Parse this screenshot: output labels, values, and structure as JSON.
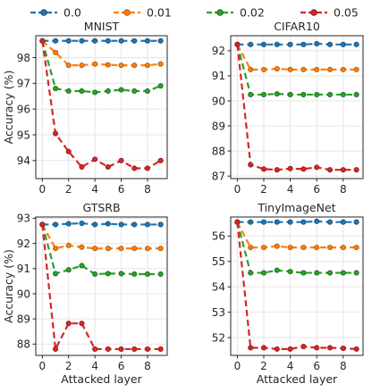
{
  "legend": {
    "placement": "top-center",
    "entries": [
      "0.0",
      "0.01",
      "0.02",
      "0.05"
    ],
    "colors": [
      "#1f77b4",
      "#ff7f0e",
      "#2ca02c",
      "#d62728"
    ]
  },
  "chart_data": [
    {
      "type": "line",
      "title": "MNIST",
      "xlabel": "",
      "ylabel": "Accuracy (%)",
      "xlim": [
        -0.5,
        9.5
      ],
      "ylim": [
        93.3,
        98.85
      ],
      "xticks": [
        0,
        2,
        4,
        6,
        8
      ],
      "yticks": [
        94,
        95,
        96,
        97,
        98
      ],
      "grid": true,
      "x": [
        0,
        1,
        2,
        3,
        4,
        5,
        6,
        7,
        8,
        9
      ],
      "series": [
        {
          "name": "0.0",
          "values": [
            98.65,
            98.65,
            98.65,
            98.65,
            98.65,
            98.65,
            98.65,
            98.65,
            98.65,
            98.65
          ]
        },
        {
          "name": "0.01",
          "values": [
            98.65,
            98.2,
            97.7,
            97.7,
            97.75,
            97.72,
            97.7,
            97.7,
            97.7,
            97.75
          ]
        },
        {
          "name": "0.02",
          "values": [
            98.65,
            96.8,
            96.7,
            96.7,
            96.65,
            96.7,
            96.75,
            96.7,
            96.7,
            96.9
          ]
        },
        {
          "name": "0.05",
          "values": [
            98.65,
            95.05,
            94.35,
            93.75,
            94.05,
            93.75,
            94.0,
            93.7,
            93.7,
            94.0
          ]
        }
      ]
    },
    {
      "type": "line",
      "title": "CIFAR10",
      "xlabel": "",
      "ylabel": "",
      "xlim": [
        -0.5,
        9.5
      ],
      "ylim": [
        86.9,
        92.6
      ],
      "xticks": [
        0,
        2,
        4,
        6,
        8
      ],
      "yticks": [
        87,
        88,
        89,
        90,
        91,
        92
      ],
      "grid": true,
      "x": [
        0,
        1,
        2,
        3,
        4,
        5,
        6,
        7,
        8,
        9
      ],
      "series": [
        {
          "name": "0.0",
          "values": [
            92.25,
            92.25,
            92.25,
            92.25,
            92.25,
            92.25,
            92.28,
            92.25,
            92.25,
            92.25
          ]
        },
        {
          "name": "0.01",
          "values": [
            92.25,
            91.25,
            91.25,
            91.28,
            91.25,
            91.25,
            91.25,
            91.25,
            91.25,
            91.25
          ]
        },
        {
          "name": "0.02",
          "values": [
            92.25,
            90.25,
            90.25,
            90.28,
            90.25,
            90.25,
            90.25,
            90.25,
            90.25,
            90.25
          ]
        },
        {
          "name": "0.05",
          "values": [
            92.25,
            87.45,
            87.28,
            87.25,
            87.3,
            87.28,
            87.35,
            87.25,
            87.25,
            87.25
          ]
        }
      ]
    },
    {
      "type": "line",
      "title": "GTSRB",
      "xlabel": "Attacked layer",
      "ylabel": "Accuracy (%)",
      "xlim": [
        -0.5,
        9.5
      ],
      "ylim": [
        87.55,
        93.05
      ],
      "xticks": [
        0,
        2,
        4,
        6,
        8
      ],
      "yticks": [
        88,
        89,
        90,
        91,
        92,
        93
      ],
      "grid": true,
      "x": [
        0,
        1,
        2,
        3,
        4,
        5,
        6,
        7,
        8,
        9
      ],
      "series": [
        {
          "name": "0.0",
          "values": [
            92.75,
            92.75,
            92.78,
            92.8,
            92.75,
            92.78,
            92.75,
            92.75,
            92.75,
            92.75
          ]
        },
        {
          "name": "0.01",
          "values": [
            92.75,
            91.8,
            91.92,
            91.85,
            91.8,
            91.8,
            91.8,
            91.8,
            91.8,
            91.8
          ]
        },
        {
          "name": "0.02",
          "values": [
            92.75,
            90.8,
            90.95,
            91.12,
            90.78,
            90.8,
            90.8,
            90.78,
            90.78,
            90.78
          ]
        },
        {
          "name": "0.05",
          "values": [
            92.75,
            87.8,
            88.82,
            88.82,
            87.8,
            87.8,
            87.8,
            87.8,
            87.8,
            87.8
          ]
        }
      ]
    },
    {
      "type": "line",
      "title": "TinyImageNet",
      "xlabel": "Attacked layer",
      "ylabel": "",
      "xlim": [
        -0.5,
        9.5
      ],
      "ylim": [
        51.3,
        56.75
      ],
      "xticks": [
        0,
        2,
        4,
        6,
        8
      ],
      "yticks": [
        52,
        53,
        54,
        55,
        56
      ],
      "grid": true,
      "x": [
        0,
        1,
        2,
        3,
        4,
        5,
        6,
        7,
        8,
        9
      ],
      "series": [
        {
          "name": "0.0",
          "values": [
            56.55,
            56.55,
            56.55,
            56.55,
            56.55,
            56.55,
            56.58,
            56.55,
            56.55,
            56.55
          ]
        },
        {
          "name": "0.01",
          "values": [
            56.55,
            55.55,
            55.55,
            55.6,
            55.55,
            55.55,
            55.55,
            55.55,
            55.55,
            55.55
          ]
        },
        {
          "name": "0.02",
          "values": [
            56.55,
            54.55,
            54.55,
            54.65,
            54.6,
            54.55,
            54.55,
            54.55,
            54.55,
            54.55
          ]
        },
        {
          "name": "0.05",
          "values": [
            56.55,
            51.6,
            51.6,
            51.55,
            51.55,
            51.65,
            51.6,
            51.6,
            51.58,
            51.55
          ]
        }
      ]
    }
  ]
}
